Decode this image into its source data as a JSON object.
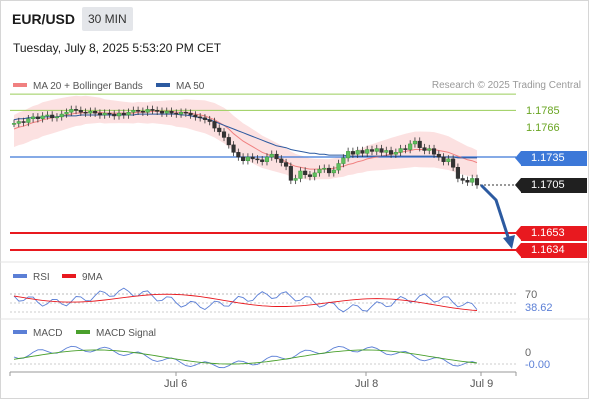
{
  "header": {
    "symbol": "EUR/USD",
    "timeframe": "30 MIN",
    "datetime": "Tuesday, July 8, 2025 5:53:20 PM CET",
    "credit": "Research © 2025 Trading Central"
  },
  "legend": {
    "ma20_label": "MA 20 + Bollinger Bands",
    "ma20_color": "#f08080",
    "ma50_label": "MA 50",
    "ma50_color": "#2c5aa0"
  },
  "price_labels": {
    "r1": "1.1785",
    "r2": "1.1766",
    "pivot": "1.1735",
    "last": "1.1705",
    "s1": "1.1653",
    "s2": "1.1634"
  },
  "rsi": {
    "label": "RSI",
    "ma_label": "9MA",
    "level": "70",
    "value": "38.62",
    "color": "#5b7fd6",
    "ma_color": "#e8191f"
  },
  "macd": {
    "label": "MACD",
    "signal_label": "MACD Signal",
    "zero": "0",
    "value": "-0.00",
    "color": "#5b7fd6",
    "signal_color": "#4aa02c"
  },
  "xaxis": {
    "labels": [
      "Jul 6",
      "Jul 8",
      "Jul 9"
    ]
  },
  "chart_data": {
    "type": "candlestick",
    "symbol": "EUR/USD",
    "interval": "30 MIN",
    "x_labels": [
      "Jul 6",
      "Jul 8",
      "Jul 9"
    ],
    "close": [
      1.1771,
      1.1773,
      1.1772,
      1.1776,
      1.1778,
      1.1776,
      1.1779,
      1.178,
      1.1777,
      1.1778,
      1.1781,
      1.1783,
      1.1786,
      1.1785,
      1.1783,
      1.1782,
      1.1784,
      1.1782,
      1.178,
      1.1782,
      1.1781,
      1.1779,
      1.1782,
      1.178,
      1.1783,
      1.1785,
      1.1784,
      1.1783,
      1.1786,
      1.1785,
      1.1784,
      1.1782,
      1.1784,
      1.1782,
      1.1781,
      1.1783,
      1.1782,
      1.178,
      1.1778,
      1.1777,
      1.1775,
      1.1773,
      1.1766,
      1.1762,
      1.1756,
      1.1748,
      1.174,
      1.1735,
      1.1731,
      1.1735,
      1.1733,
      1.1732,
      1.173,
      1.1735,
      1.1738,
      1.1733,
      1.1729,
      1.1725,
      1.171,
      1.1712,
      1.172,
      1.1716,
      1.1714,
      1.1718,
      1.1722,
      1.1723,
      1.1718,
      1.1721,
      1.1728,
      1.1734,
      1.1741,
      1.1738,
      1.1742,
      1.1739,
      1.1743,
      1.1741,
      1.1744,
      1.174,
      1.1742,
      1.1738,
      1.174,
      1.1744,
      1.1743,
      1.1749,
      1.1752,
      1.1745,
      1.1742,
      1.1744,
      1.1738,
      1.1735,
      1.173,
      1.1733,
      1.1724,
      1.1712,
      1.171,
      1.1708,
      1.1712,
      1.1705
    ],
    "ma20": [
      1.1765,
      1.1767,
      1.1768,
      1.177,
      1.1772,
      1.1773,
      1.1775,
      1.1776,
      1.1777,
      1.1778,
      1.1779,
      1.178,
      1.1781,
      1.1782,
      1.1782,
      1.1783,
      1.1783,
      1.1783,
      1.1783,
      1.1782,
      1.1782,
      1.1782,
      1.1782,
      1.1782,
      1.1782,
      1.1782,
      1.1783,
      1.1783,
      1.1783,
      1.1784,
      1.1784,
      1.1784,
      1.1784,
      1.1784,
      1.1783,
      1.1783,
      1.1783,
      1.1782,
      1.1781,
      1.178,
      1.1779,
      1.1777,
      1.1775,
      1.1772,
      1.1769,
      1.1765,
      1.176,
      1.1756,
      1.1752,
      1.1749,
      1.1746,
      1.1743,
      1.174,
      1.1738,
      1.1736,
      1.1734,
      1.1732,
      1.173,
      1.1727,
      1.1725,
      1.1724,
      1.1723,
      1.1722,
      1.1722,
      1.1722,
      1.1722,
      1.1722,
      1.1723,
      1.1724,
      1.1725,
      1.1727,
      1.1728,
      1.173,
      1.1731,
      1.1733,
      1.1734,
      1.1735,
      1.1736,
      1.1737,
      1.1738,
      1.1739,
      1.174,
      1.1741,
      1.1742,
      1.1743,
      1.1743,
      1.1743,
      1.1743,
      1.1743,
      1.1742,
      1.1741,
      1.174,
      1.1738,
      1.1736,
      1.1734,
      1.1732,
      1.1731,
      1.1729
    ],
    "ma50": [
      1.1775,
      1.1776,
      1.1776,
      1.1777,
      1.1777,
      1.1777,
      1.1778,
      1.1778,
      1.1778,
      1.1778,
      1.1779,
      1.1779,
      1.1779,
      1.1779,
      1.178,
      1.178,
      1.178,
      1.178,
      1.178,
      1.178,
      1.178,
      1.178,
      1.178,
      1.178,
      1.178,
      1.178,
      1.1781,
      1.1781,
      1.1781,
      1.1781,
      1.1781,
      1.1781,
      1.1781,
      1.1781,
      1.1781,
      1.178,
      1.178,
      1.1779,
      1.1778,
      1.1777,
      1.1776,
      1.1775,
      1.1773,
      1.1771,
      1.1769,
      1.1767,
      1.1765,
      1.1763,
      1.1761,
      1.1759,
      1.1757,
      1.1755,
      1.1753,
      1.1751,
      1.1749,
      1.1747,
      1.1746,
      1.1745,
      1.1743,
      1.1742,
      1.1741,
      1.174,
      1.1739,
      1.1739,
      1.1738,
      1.1738,
      1.1737,
      1.1737,
      1.1737,
      1.1737,
      1.1736,
      1.1736,
      1.1736,
      1.1736,
      1.1736,
      1.1736,
      1.1736,
      1.1736,
      1.1736,
      1.1736,
      1.1736,
      1.1736,
      1.1736,
      1.1736,
      1.1736,
      1.1736,
      1.1736,
      1.1736,
      1.1736,
      1.1735,
      1.1735,
      1.1735,
      1.1735,
      1.1734,
      1.1734,
      1.1734,
      1.1734,
      1.1734
    ],
    "levels": {
      "r1": 1.1785,
      "r2": 1.1766,
      "pivot": 1.1735,
      "last": 1.1705,
      "s1": 1.1653,
      "s2": 1.1634
    },
    "rsi_value": 38.62,
    "rsi_level": 70,
    "macd_value": -0.0
  }
}
